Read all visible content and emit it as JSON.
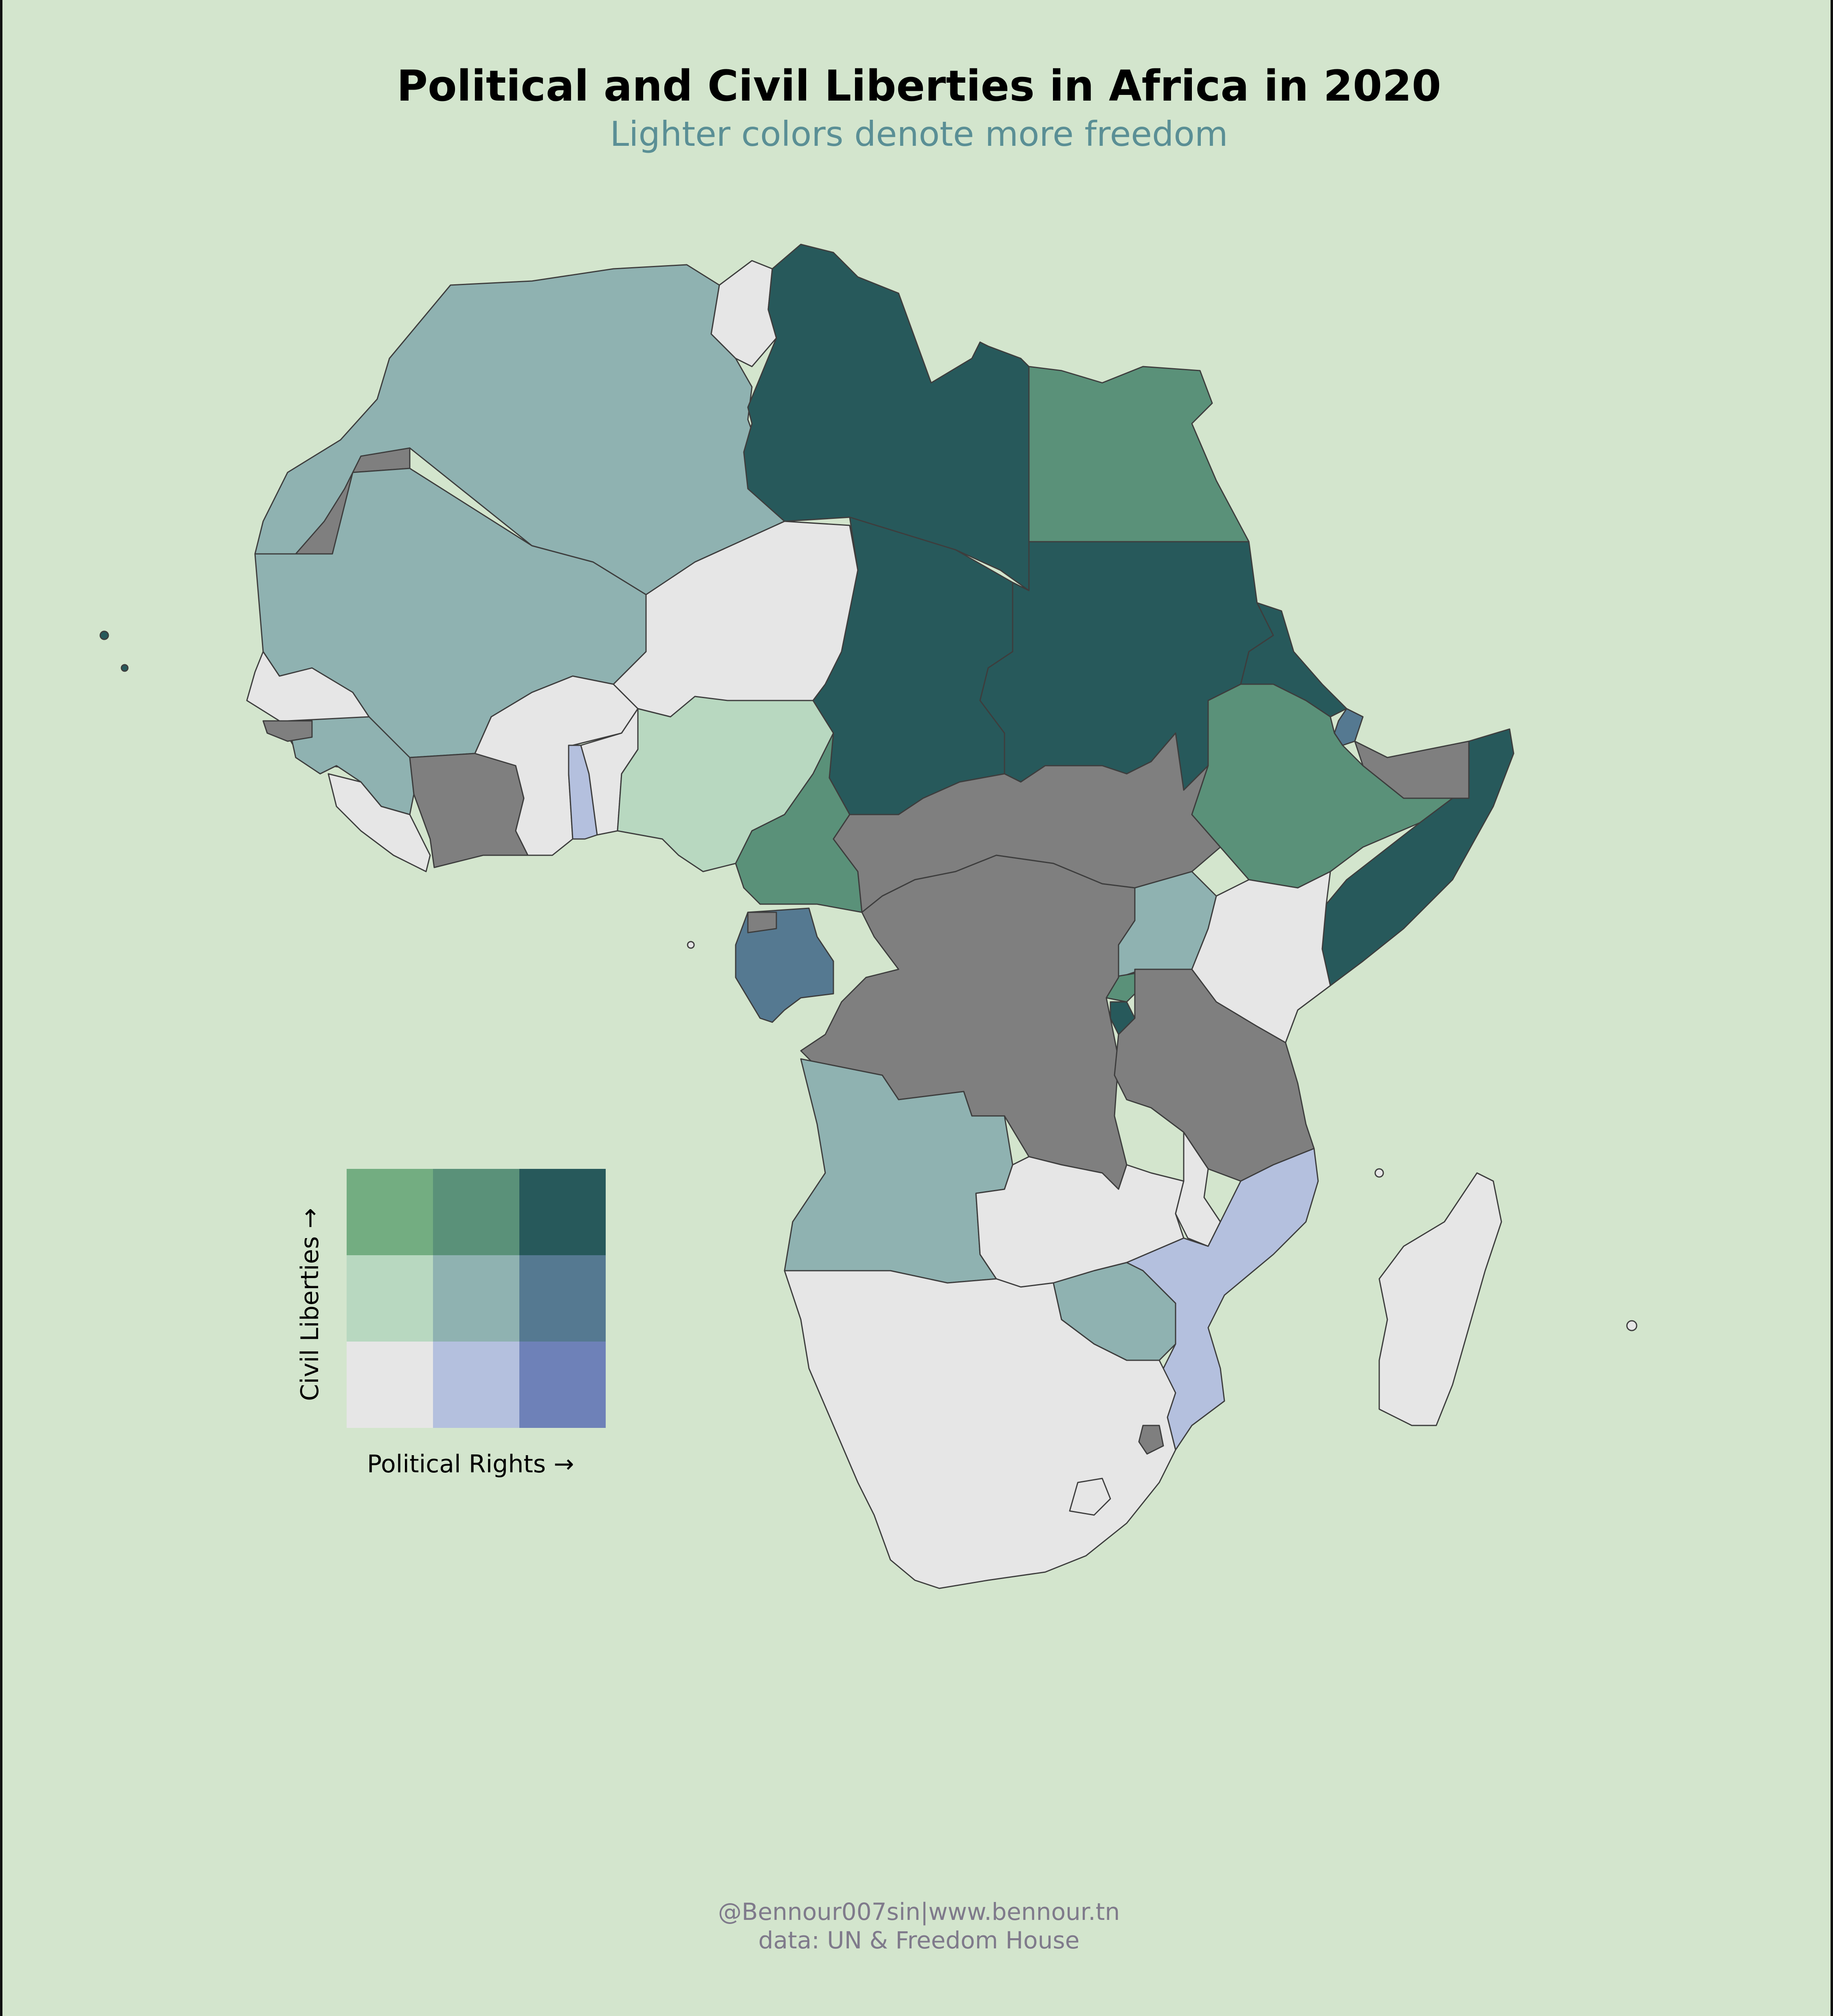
{
  "title": "Political and Civil Liberties in Africa in 2020",
  "subtitle": "Lighter colors denote more freedom",
  "credits": {
    "line1": "@Bennour007sin|www.bennour.tn",
    "line2": "data: UN & Freedom House"
  },
  "legend": {
    "x_label": "Political Rights →",
    "y_label": "Civil Liberties →",
    "grid_colors": [
      [
        "#73ad81",
        "#5a9179",
        "#27595b"
      ],
      [
        "#b8d8c0",
        "#8fb2b1",
        "#557991"
      ],
      [
        "#e6e6e6",
        "#b4c0de",
        "#6e81b8"
      ]
    ],
    "no_data_color": "#7f7f7f"
  },
  "map": {
    "ocean_color": "#d3e5cd",
    "regions": [
      {
        "name": "Morocco / Algeria / Tunisia region",
        "color": "#8fb2b1"
      },
      {
        "name": "Western Sahara",
        "color": "#7f7f7f"
      },
      {
        "name": "Mauritania / Mali",
        "color": "#8fb2b1"
      },
      {
        "name": "Libya",
        "color": "#27595b"
      },
      {
        "name": "Egypt",
        "color": "#5a9179"
      },
      {
        "name": "Sudan",
        "color": "#27595b"
      },
      {
        "name": "Chad",
        "color": "#27595b"
      },
      {
        "name": "Niger",
        "color": "#e6e6e6"
      },
      {
        "name": "Nigeria",
        "color": "#b8d8c0"
      },
      {
        "name": "Cameroon",
        "color": "#5a9179"
      },
      {
        "name": "Ethiopia",
        "color": "#5a9179"
      },
      {
        "name": "Somalia",
        "color": "#27595b"
      },
      {
        "name": "Somaliland",
        "color": "#7f7f7f"
      },
      {
        "name": "Central African Republic / South Sudan",
        "color": "#7f7f7f"
      },
      {
        "name": "DR Congo",
        "color": "#7f7f7f"
      },
      {
        "name": "Gabon",
        "color": "#557991"
      },
      {
        "name": "Angola",
        "color": "#8fb2b1"
      },
      {
        "name": "Zambia",
        "color": "#e6e6e6"
      },
      {
        "name": "Tanzania",
        "color": "#7f7f7f"
      },
      {
        "name": "Kenya",
        "color": "#e6e6e6"
      },
      {
        "name": "Uganda",
        "color": "#8fb2b1"
      },
      {
        "name": "Mozambique",
        "color": "#b4c0de"
      },
      {
        "name": "Zimbabwe",
        "color": "#8fb2b1"
      },
      {
        "name": "Southern Africa",
        "color": "#e6e6e6"
      },
      {
        "name": "Madagascar",
        "color": "#e6e6e6"
      },
      {
        "name": "Ivory Coast",
        "color": "#7f7f7f"
      },
      {
        "name": "Togo",
        "color": "#b4c0de"
      }
    ]
  }
}
